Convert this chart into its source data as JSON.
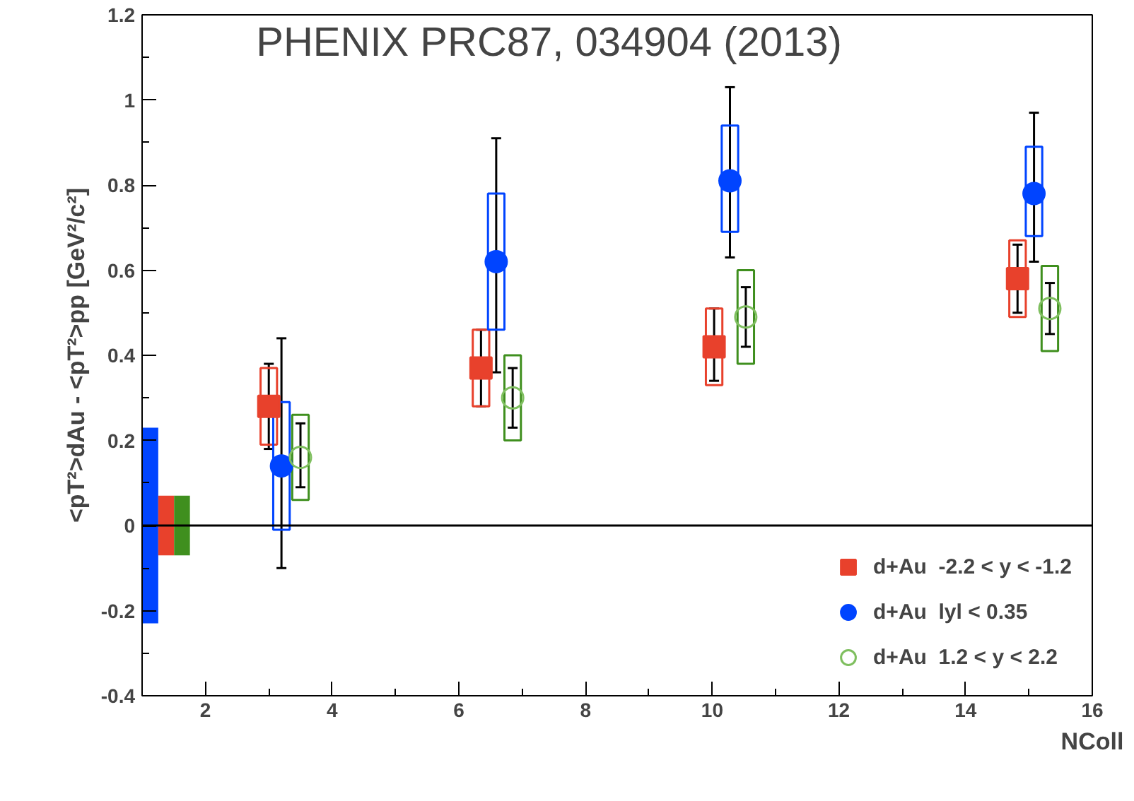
{
  "chart_data": {
    "type": "scatter",
    "xlabel": "NColl",
    "ylabel": "<pT²>dAu - <pT²>pp [GeV²/c²]",
    "annotations": [
      "PHENIX PRC87, 034904 (2013)"
    ],
    "xlim": [
      1,
      16
    ],
    "xticks": [
      2,
      4,
      6,
      8,
      10,
      12,
      14,
      16
    ],
    "ylim": [
      -0.4,
      1.2
    ],
    "yticks": [
      -0.4,
      -0.2,
      0,
      0.2,
      0.4,
      0.6,
      0.8,
      1,
      1.2
    ],
    "grid": false,
    "legend": "bottom right",
    "ref_lines": [
      {
        "axis": "y",
        "value": 0,
        "color": "#000000"
      }
    ],
    "series": [
      {
        "type": "bar",
        "color": "#0044ff",
        "x": [
          1.13
        ],
        "base": [
          -0.23
        ],
        "values": [
          0.46
        ]
      },
      {
        "type": "bar",
        "color": "#e8412c",
        "x": [
          1.38
        ],
        "base": [
          -0.07
        ],
        "values": [
          0.14
        ]
      },
      {
        "type": "bar",
        "color": "#3f8f1e",
        "x": [
          1.63
        ],
        "base": [
          -0.07
        ],
        "values": [
          0.14
        ]
      },
      {
        "type": "bar",
        "line_style": "solid",
        "color": "#e8412c",
        "x": [
          3.0,
          6.35,
          10.03,
          14.82
        ],
        "base": [
          0.19,
          0.28,
          0.33,
          0.49
        ],
        "values": [
          0.18,
          0.18,
          0.18,
          0.18
        ]
      },
      {
        "type": "bar",
        "line_style": "solid",
        "color": "#0044ff",
        "x": [
          3.2,
          6.59,
          10.28,
          15.08
        ],
        "base": [
          -0.01,
          0.46,
          0.69,
          0.68
        ],
        "values": [
          0.3,
          0.32,
          0.25,
          0.21
        ]
      },
      {
        "type": "bar",
        "line_style": "solid",
        "color": "#3f8f1e",
        "x": [
          3.5,
          6.85,
          10.53,
          15.33
        ],
        "base": [
          0.06,
          0.2,
          0.38,
          0.41
        ],
        "values": [
          0.2,
          0.2,
          0.22,
          0.2
        ]
      },
      {
        "name": "d+Au  -2.2 < y < -1.2",
        "marker": "square",
        "color": "#e8412c",
        "x": [
          3.0,
          6.35,
          10.03,
          14.82
        ],
        "values": [
          0.28,
          0.37,
          0.42,
          0.58
        ],
        "errors": [
          [
            0.18,
            0.38
          ],
          [
            0.28,
            0.46
          ],
          [
            0.34,
            0.51
          ],
          [
            0.5,
            0.66
          ]
        ]
      },
      {
        "name": "d+Au  lyl < 0.35",
        "marker": "circle",
        "color": "#0044ff",
        "x": [
          3.2,
          6.59,
          10.28,
          15.08
        ],
        "values": [
          0.14,
          0.62,
          0.81,
          0.78
        ],
        "errors": [
          [
            -0.1,
            0.44
          ],
          [
            0.36,
            0.91
          ],
          [
            0.63,
            1.03
          ],
          [
            0.62,
            0.97
          ]
        ]
      },
      {
        "name": "d+Au  1.2 < y < 2.2",
        "marker": "circle",
        "line_style": "solid",
        "color": "#7fbf5f",
        "x": [
          3.5,
          6.85,
          10.53,
          15.33
        ],
        "values": [
          0.16,
          0.3,
          0.49,
          0.51
        ],
        "errors": [
          [
            0.09,
            0.24
          ],
          [
            0.23,
            0.37
          ],
          [
            0.42,
            0.56
          ],
          [
            0.45,
            0.57
          ]
        ]
      }
    ]
  }
}
